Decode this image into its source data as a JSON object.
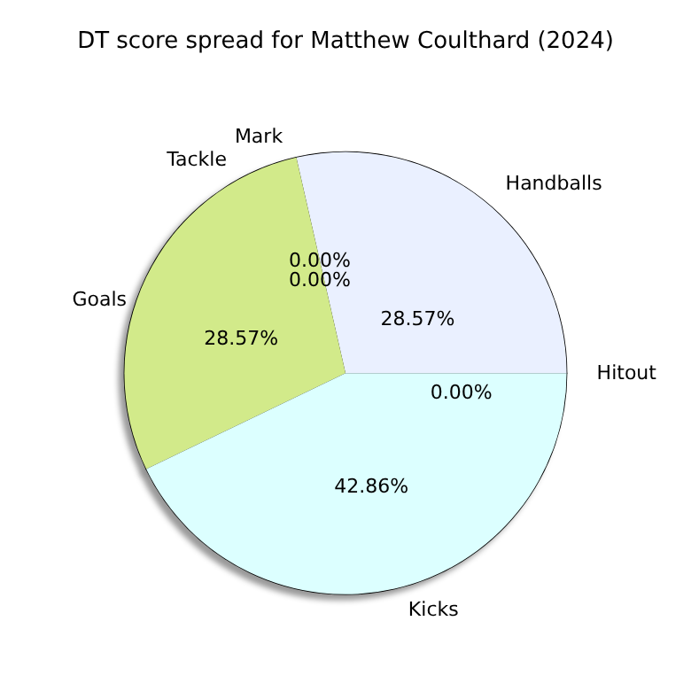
{
  "chart_data": {
    "type": "pie",
    "title": "DT score spread for Matthew Coulthard (2024)",
    "categories": [
      "Handballs",
      "Mark",
      "Tackle",
      "Goals",
      "Kicks",
      "Hitout"
    ],
    "values": [
      28.57,
      0,
      0,
      28.57,
      42.86,
      0
    ],
    "colors": [
      "#eaf0ff",
      "#f0e0c0",
      "#ffe0e0",
      "#d2ea8a",
      "#dcffff",
      "#f5f5f5"
    ],
    "value_labels": [
      "28.57%",
      "0.00%",
      "0.00%",
      "28.57%",
      "42.86%",
      "0.00%"
    ]
  }
}
